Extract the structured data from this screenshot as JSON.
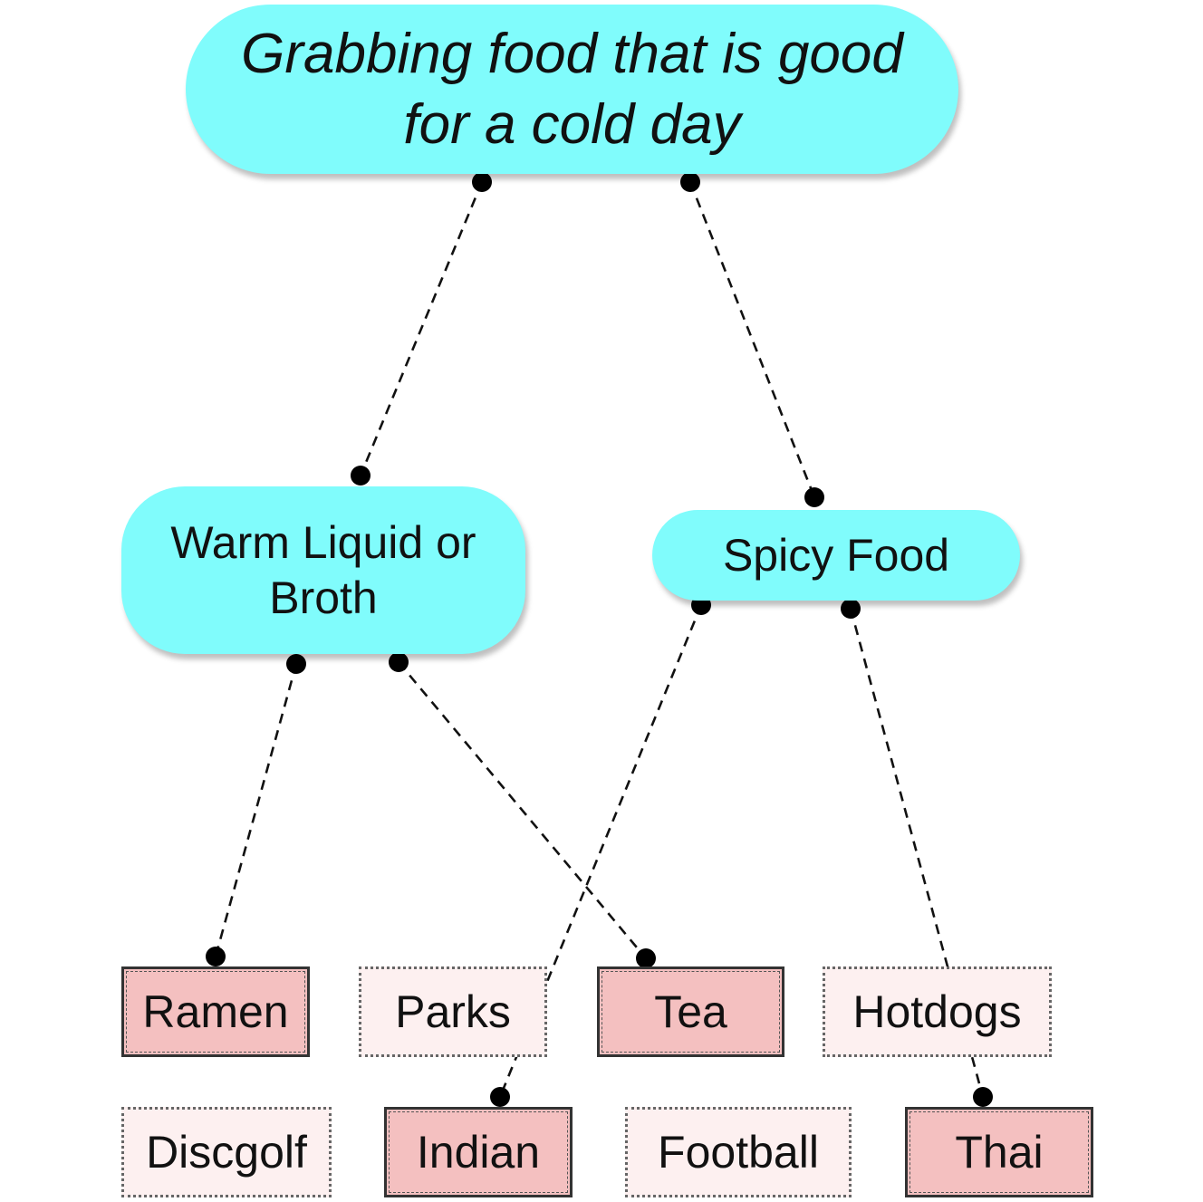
{
  "diagram": {
    "root": "Grabbing food that is good for a cold day",
    "categories": {
      "warm": "Warm Liquid or Broth",
      "spicy": "Spicy Food"
    },
    "items": {
      "ramen": "Ramen",
      "parks": "Parks",
      "tea": "Tea",
      "hotdogs": "Hotdogs",
      "discgolf": "Discgolf",
      "indian": "Indian",
      "football": "Football",
      "thai": "Thai"
    },
    "connections": [
      {
        "from": "root",
        "to": "warm"
      },
      {
        "from": "root",
        "to": "spicy"
      },
      {
        "from": "warm",
        "to": "ramen"
      },
      {
        "from": "warm",
        "to": "tea"
      },
      {
        "from": "spicy",
        "to": "indian"
      },
      {
        "from": "spicy",
        "to": "thai"
      }
    ],
    "colors": {
      "pill_fill": "#80fcfc",
      "selected_item_fill": "#f4c0c0",
      "unselected_item_fill": "#fdf0f0"
    }
  }
}
